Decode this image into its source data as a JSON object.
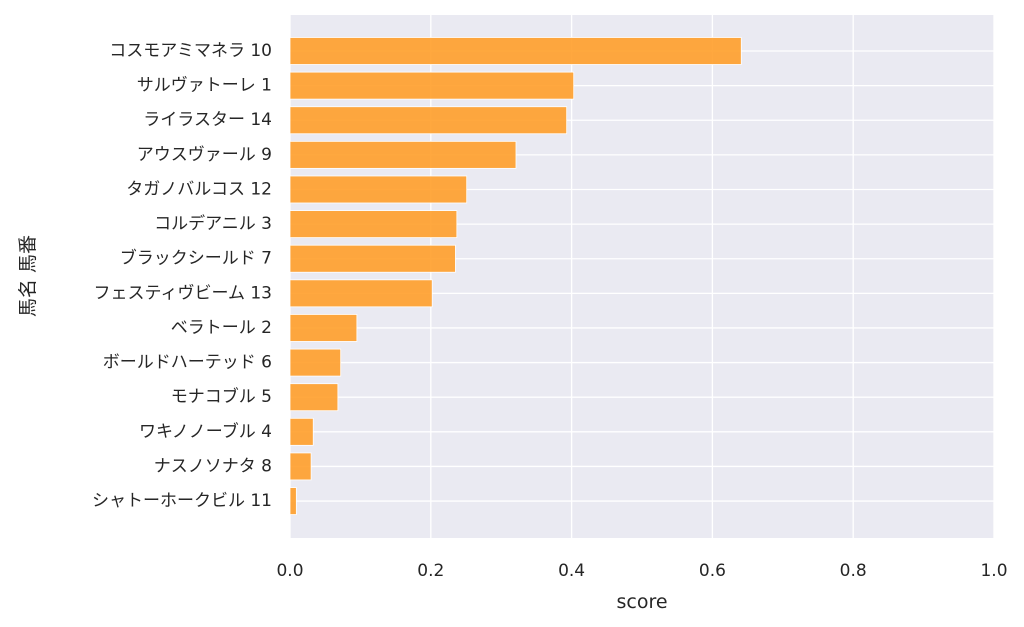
{
  "chart_data": {
    "type": "bar",
    "orientation": "horizontal",
    "categories": [
      "コスモアミマネラ 10",
      "サルヴァトーレ 1",
      "ライラスター 14",
      "アウスヴァール 9",
      "タガノバルコス 12",
      "コルデアニル 3",
      "ブラックシールド 7",
      "フェスティヴビーム 13",
      "ベラトール 2",
      "ボールドハーテッド 6",
      "モナコブル 5",
      "ワキノノーブル 4",
      "ナスノソナタ 8",
      "シャトーホークビル 11"
    ],
    "values": [
      0.641,
      0.403,
      0.393,
      0.321,
      0.251,
      0.237,
      0.235,
      0.202,
      0.095,
      0.072,
      0.068,
      0.033,
      0.03,
      0.009
    ],
    "xlabel": "score",
    "ylabel": "馬名 馬番",
    "xlim": [
      0.0,
      1.0
    ],
    "xticks": [
      "0.0",
      "0.2",
      "0.4",
      "0.6",
      "0.8",
      "1.0"
    ],
    "grid": true,
    "bar_color": "#ff9f2a",
    "plot_background": "#eaeaf2"
  }
}
